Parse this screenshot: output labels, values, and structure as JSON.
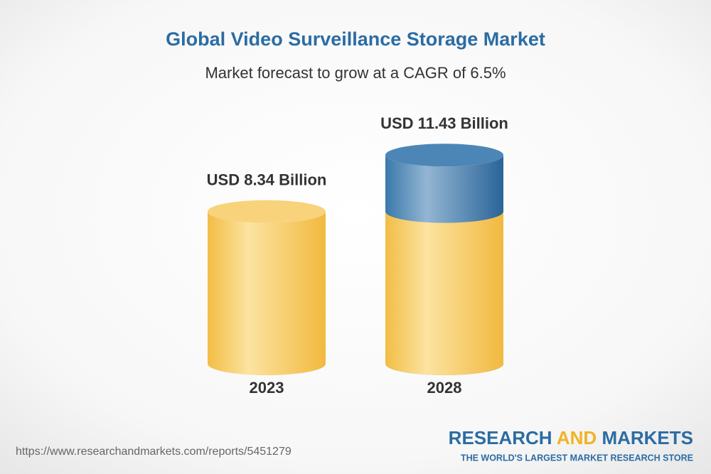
{
  "chart_data": {
    "type": "cylinder",
    "title": "Global Video Surveillance Storage Market",
    "subtitle": "Market forecast to grow at a CAGR of 6.5%",
    "categories": [
      "2023",
      "2028"
    ],
    "values": [
      8.34,
      11.43
    ],
    "value_labels": [
      "USD 8.34 Billion",
      "USD 11.43 Billion"
    ],
    "colors": {
      "base": "#f3bf4c",
      "growth": "#2f6a9e"
    }
  },
  "footer": {
    "url": "https://www.researchandmarkets.com/reports/5451279",
    "brand": [
      "RESEARCH",
      "AND",
      "MARKETS"
    ],
    "tagline": "THE WORLD'S LARGEST MARKET RESEARCH STORE"
  }
}
